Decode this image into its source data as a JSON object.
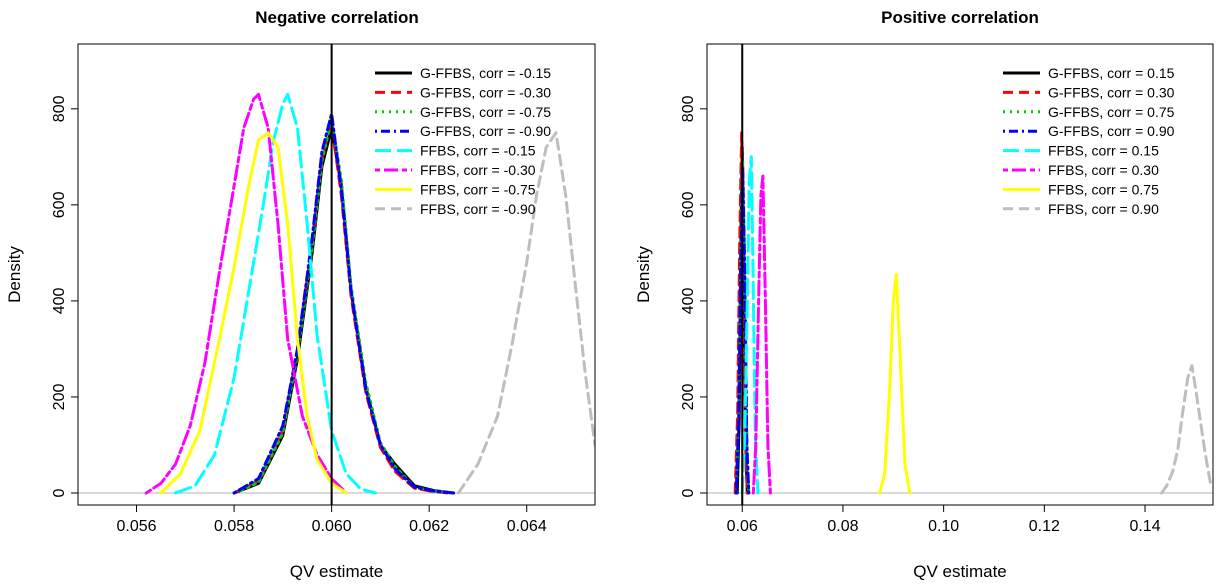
{
  "chart_data": [
    {
      "type": "line",
      "title": "Negative correlation",
      "xlabel": "QV estimate",
      "ylabel": "Density",
      "xlim": [
        0.0548,
        0.0654
      ],
      "ylim": [
        -25,
        935
      ],
      "xticks": [
        0.056,
        0.058,
        0.06,
        0.062,
        0.064
      ],
      "xtick_labels": [
        "0.056",
        "0.058",
        "0.060",
        "0.062",
        "0.064"
      ],
      "yticks": [
        0,
        200,
        400,
        600,
        800
      ],
      "ytick_labels": [
        "0",
        "200",
        "400",
        "600",
        "800"
      ],
      "reference_line_x": 0.06,
      "baseline_y": 0,
      "legend_position": "top-right",
      "series": [
        {
          "name": "G-FFBS, corr = -0.15",
          "color": "#000000",
          "dash": "solid",
          "x": [
            0.058,
            0.0585,
            0.059,
            0.0593,
            0.0596,
            0.0598,
            0.06,
            0.0602,
            0.0604,
            0.0607,
            0.061,
            0.0613,
            0.0617,
            0.0621,
            0.0625
          ],
          "y": [
            0,
            20,
            120,
            280,
            500,
            680,
            760,
            640,
            420,
            220,
            100,
            60,
            15,
            5,
            0
          ]
        },
        {
          "name": "G-FFBS, corr = -0.30",
          "color": "#ff0000",
          "dash": "dashed",
          "x": [
            0.058,
            0.0585,
            0.059,
            0.0593,
            0.0596,
            0.0598,
            0.06,
            0.0602,
            0.0604,
            0.0607,
            0.061,
            0.0613,
            0.0617,
            0.0621,
            0.0624
          ],
          "y": [
            0,
            25,
            130,
            300,
            520,
            700,
            770,
            620,
            410,
            210,
            95,
            45,
            10,
            3,
            0
          ]
        },
        {
          "name": "G-FFBS, corr = -0.75",
          "color": "#00cd00",
          "dash": "dotted",
          "x": [
            0.058,
            0.0585,
            0.059,
            0.0593,
            0.0596,
            0.0598,
            0.06,
            0.0602,
            0.0604,
            0.0607,
            0.061,
            0.0613,
            0.0617,
            0.0621,
            0.0625
          ],
          "y": [
            0,
            22,
            125,
            290,
            510,
            690,
            780,
            650,
            430,
            230,
            105,
            55,
            12,
            4,
            0
          ]
        },
        {
          "name": "G-FFBS, corr = -0.90",
          "color": "#0000ff",
          "dash": "dotdash",
          "x": [
            0.058,
            0.0585,
            0.059,
            0.0593,
            0.0596,
            0.0598,
            0.06,
            0.0602,
            0.0604,
            0.0607,
            0.061,
            0.0613,
            0.0617,
            0.0621,
            0.0625
          ],
          "y": [
            0,
            30,
            140,
            300,
            530,
            710,
            790,
            630,
            420,
            215,
            100,
            50,
            12,
            4,
            0
          ]
        },
        {
          "name": "FFBS, corr = -0.15",
          "color": "#00ffff",
          "dash": "longdash",
          "x": [
            0.0568,
            0.0572,
            0.0576,
            0.058,
            0.0583,
            0.0586,
            0.0588,
            0.059,
            0.0591,
            0.0593,
            0.0595,
            0.0597,
            0.06,
            0.0603,
            0.0606,
            0.0609
          ],
          "y": [
            0,
            15,
            80,
            240,
            420,
            600,
            730,
            810,
            830,
            760,
            560,
            330,
            130,
            40,
            8,
            0
          ]
        },
        {
          "name": "FFBS, corr = -0.30",
          "color": "#ff00ff",
          "dash": "twodash",
          "x": [
            0.0562,
            0.0565,
            0.0568,
            0.0571,
            0.0574,
            0.0577,
            0.058,
            0.0582,
            0.0584,
            0.0585,
            0.0587,
            0.0589,
            0.0591,
            0.0594,
            0.0597,
            0.06,
            0.0603
          ],
          "y": [
            0,
            20,
            60,
            140,
            270,
            460,
            640,
            760,
            820,
            830,
            760,
            560,
            320,
            160,
            80,
            30,
            0
          ]
        },
        {
          "name": "FFBS, corr = -0.75",
          "color": "#ffff00",
          "dash": "solid",
          "x": [
            0.0565,
            0.0569,
            0.0573,
            0.0577,
            0.058,
            0.0583,
            0.0585,
            0.0587,
            0.0589,
            0.0591,
            0.0593,
            0.0595,
            0.0597,
            0.06,
            0.0603
          ],
          "y": [
            0,
            40,
            130,
            320,
            470,
            640,
            735,
            750,
            720,
            560,
            320,
            160,
            70,
            20,
            0
          ]
        },
        {
          "name": "FFBS, corr = -0.90",
          "color": "#bebebe",
          "dash": "dashed",
          "x": [
            0.0626,
            0.063,
            0.0634,
            0.0637,
            0.064,
            0.0642,
            0.0644,
            0.0646,
            0.0648,
            0.065,
            0.0652,
            0.0654
          ],
          "y": [
            0,
            60,
            160,
            310,
            480,
            620,
            720,
            750,
            620,
            430,
            250,
            100
          ]
        }
      ]
    },
    {
      "type": "line",
      "title": "Positive correlation",
      "xlabel": "QV estimate",
      "ylabel": "Density",
      "xlim": [
        0.053,
        0.1535
      ],
      "ylim": [
        -25,
        935
      ],
      "xticks": [
        0.06,
        0.08,
        0.1,
        0.12,
        0.14
      ],
      "xtick_labels": [
        "0.06",
        "0.08",
        "0.10",
        "0.12",
        "0.14"
      ],
      "yticks": [
        0,
        200,
        400,
        600,
        800
      ],
      "ytick_labels": [
        "0",
        "200",
        "400",
        "600",
        "800"
      ],
      "reference_line_x": 0.06,
      "baseline_y": 0,
      "legend_position": "top-right",
      "series": [
        {
          "name": "G-FFBS, corr = 0.15",
          "color": "#000000",
          "dash": "solid",
          "x": [
            0.059,
            0.0594,
            0.0597,
            0.06,
            0.0603,
            0.0606,
            0.061
          ],
          "y": [
            0,
            150,
            500,
            720,
            480,
            120,
            0
          ]
        },
        {
          "name": "G-FFBS, corr = 0.30",
          "color": "#ff0000",
          "dash": "dashed",
          "x": [
            0.0586,
            0.0591,
            0.0595,
            0.0599,
            0.0602,
            0.0606,
            0.061
          ],
          "y": [
            0,
            170,
            520,
            750,
            500,
            130,
            0
          ]
        },
        {
          "name": "G-FFBS, corr = 0.75",
          "color": "#00cd00",
          "dash": "dotted",
          "x": [
            0.0588,
            0.0593,
            0.0597,
            0.0601,
            0.0605,
            0.0609,
            0.0613
          ],
          "y": [
            0,
            160,
            480,
            690,
            470,
            110,
            0
          ]
        },
        {
          "name": "G-FFBS, corr = 0.90",
          "color": "#0000ff",
          "dash": "dotdash",
          "x": [
            0.0588,
            0.0593,
            0.0597,
            0.0601,
            0.0605,
            0.0609,
            0.0613
          ],
          "y": [
            0,
            150,
            460,
            680,
            450,
            100,
            0
          ]
        },
        {
          "name": "FFBS, corr = 0.15",
          "color": "#00ffff",
          "dash": "longdash",
          "x": [
            0.06,
            0.0605,
            0.061,
            0.0614,
            0.0618,
            0.0622,
            0.0626,
            0.0631
          ],
          "y": [
            0,
            120,
            400,
            650,
            700,
            420,
            120,
            0
          ]
        },
        {
          "name": "FFBS, corr = 0.30",
          "color": "#ff00ff",
          "dash": "twodash",
          "x": [
            0.0622,
            0.0627,
            0.0632,
            0.0637,
            0.0641,
            0.0646,
            0.0651,
            0.0656
          ],
          "y": [
            0,
            100,
            380,
            620,
            660,
            400,
            100,
            0
          ]
        },
        {
          "name": "FFBS, corr = 0.75",
          "color": "#ffff00",
          "dash": "solid",
          "x": [
            0.0873,
            0.0883,
            0.0893,
            0.09,
            0.0906,
            0.0913,
            0.0923,
            0.0933
          ],
          "y": [
            0,
            40,
            220,
            400,
            455,
            300,
            60,
            0
          ]
        },
        {
          "name": "FFBS, corr = 0.90",
          "color": "#bebebe",
          "dash": "dashed",
          "x": [
            0.1433,
            0.1443,
            0.1455,
            0.1465,
            0.1475,
            0.1485,
            0.1493,
            0.15,
            0.151,
            0.152,
            0.153
          ],
          "y": [
            0,
            15,
            45,
            90,
            170,
            240,
            265,
            220,
            150,
            80,
            20
          ]
        }
      ]
    }
  ]
}
